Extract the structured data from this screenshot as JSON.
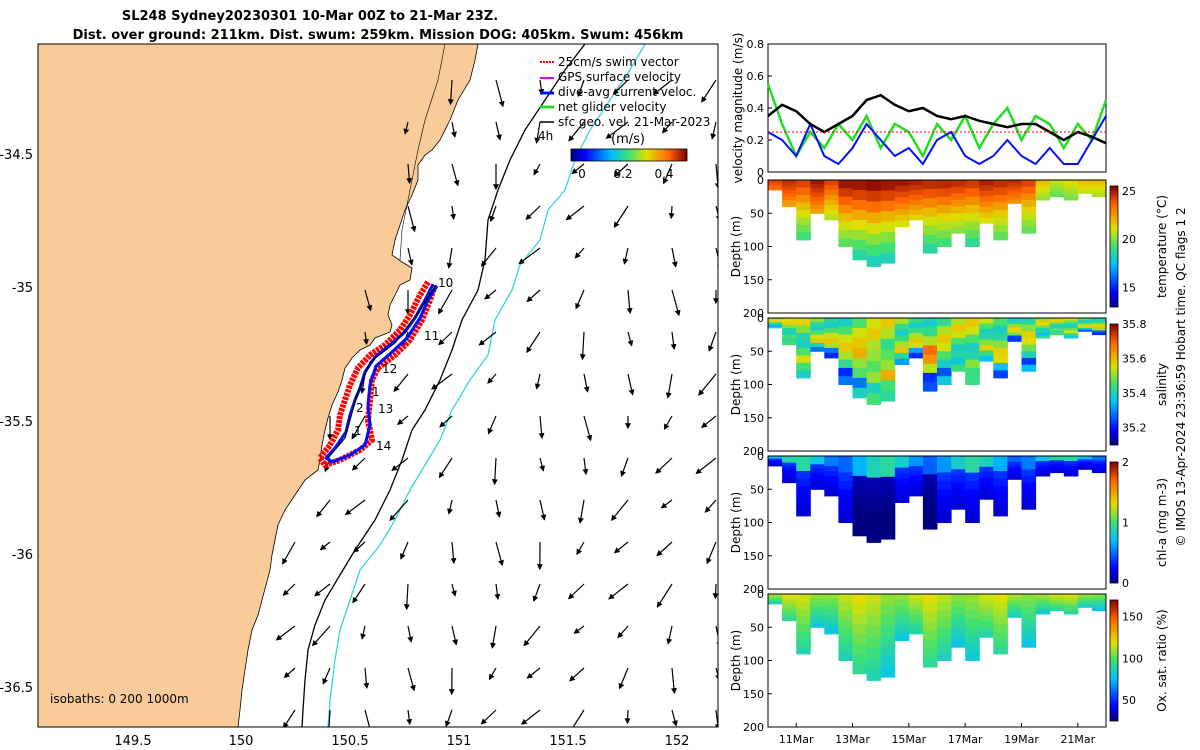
{
  "figure": {
    "title_line1": "SL248 Sydney20230301 10-Mar 00Z to 21-Mar 23Z.",
    "title_line2": "Dist. over ground: 211km. Dist. swum: 259km. Mission DOG: 405km. Swum: 456km",
    "credit": "© IMOS 13-Apr-2024 23:36:59 Hobart time. QC flags 1  2",
    "colors": {
      "land": "#f9cb98",
      "sea": "#ffffff",
      "isobath_deep": "#000000",
      "isobath_200": "#33d6e0",
      "track_red": "#ff0000",
      "track_blue": "#0010ff",
      "track_green": "#22dd22",
      "track_magenta": "#dd00dd"
    }
  },
  "map": {
    "x_ticks": [
      "149.5",
      "150",
      "150.5",
      "151",
      "151.5",
      "152"
    ],
    "y_ticks": [
      "-34.5",
      "-35",
      "-35.5",
      "-36",
      "-36.5"
    ],
    "legend": [
      "25cm/s swim vector",
      "GPS surface velocity",
      "dive-avg current veloc.",
      "net glider velocity",
      "sfc geo. vel. 21-Mar-2023"
    ],
    "colorbar_label": "(m/s)",
    "colorbar_ticks": [
      "0",
      "0.2",
      "0.4"
    ],
    "isobaths_note": "isobaths: 0   200  1000m",
    "time_marker": "4h",
    "day_labels": [
      "10",
      "11",
      "12",
      "1",
      "13",
      "2",
      "1",
      "14"
    ]
  },
  "chart_data": [
    {
      "type": "line",
      "title": "",
      "ylabel": "velocity magnitude (m/s)",
      "ylim": [
        0,
        0.8
      ],
      "y_ticks": [
        "0",
        "0.2",
        "0.4",
        "0.6",
        "0.8"
      ],
      "x": [
        10,
        10.5,
        11,
        11.5,
        12,
        12.5,
        13,
        13.5,
        14,
        14.5,
        15,
        15.5,
        16,
        16.5,
        17,
        17.5,
        18,
        18.5,
        19,
        19.5,
        20,
        20.5,
        21,
        21.5,
        22
      ],
      "series": [
        {
          "name": "net glider velocity",
          "values": [
            0.55,
            0.3,
            0.1,
            0.25,
            0.15,
            0.3,
            0.2,
            0.35,
            0.15,
            0.3,
            0.25,
            0.1,
            0.3,
            0.2,
            0.35,
            0.15,
            0.3,
            0.4,
            0.2,
            0.35,
            0.3,
            0.15,
            0.3,
            0.2,
            0.45
          ]
        },
        {
          "name": "dive-avg current veloc.",
          "values": [
            0.25,
            0.2,
            0.1,
            0.3,
            0.1,
            0.05,
            0.15,
            0.3,
            0.2,
            0.1,
            0.15,
            0.05,
            0.2,
            0.25,
            0.1,
            0.05,
            0.1,
            0.2,
            0.1,
            0.05,
            0.15,
            0.05,
            0.05,
            0.2,
            0.35
          ]
        },
        {
          "name": "sfc geo. vel.",
          "values": [
            0.35,
            0.42,
            0.38,
            0.3,
            0.25,
            0.3,
            0.35,
            0.45,
            0.48,
            0.42,
            0.38,
            0.4,
            0.35,
            0.33,
            0.35,
            0.32,
            0.3,
            0.28,
            0.3,
            0.3,
            0.25,
            0.2,
            0.25,
            0.22,
            0.18
          ]
        },
        {
          "name": "25cm/s swim vector",
          "values": [
            0.25,
            0.25,
            0.25,
            0.25,
            0.25,
            0.25,
            0.25,
            0.25,
            0.25,
            0.25,
            0.25,
            0.25,
            0.25,
            0.25,
            0.25,
            0.25,
            0.25,
            0.25,
            0.25,
            0.25,
            0.25,
            0.25,
            0.25,
            0.25,
            0.25
          ]
        }
      ]
    },
    {
      "type": "heatmap",
      "variable": "temperature",
      "colorbar_label": "temperature (°C)",
      "colorbar_ticks": [
        "15",
        "20",
        "25"
      ],
      "colorbar_range": [
        13,
        25.5
      ],
      "ylabel": "Depth (m)",
      "y_ticks": [
        "0",
        "50",
        "100",
        "150",
        "200"
      ],
      "ylim": [
        200,
        0
      ],
      "x": [
        10,
        10.5,
        11,
        11.5,
        12,
        12.5,
        13,
        13.5,
        14,
        14.5,
        15,
        15.5,
        16,
        16.5,
        17,
        17.5,
        18,
        18.5,
        19,
        19.5,
        20,
        20.5,
        21,
        21.5,
        22
      ],
      "max_depth": [
        15,
        40,
        90,
        50,
        60,
        100,
        120,
        130,
        125,
        70,
        60,
        110,
        100,
        80,
        100,
        65,
        90,
        35,
        80,
        30,
        25,
        30,
        20,
        25,
        20
      ],
      "surface_values": [
        24,
        24.5,
        24,
        25,
        24,
        25,
        25,
        25.2,
        25,
        25,
        24.8,
        24.5,
        24.6,
        24.5,
        24.2,
        24.8,
        24.5,
        24.5,
        24,
        22,
        21,
        21.5,
        22,
        22,
        22
      ]
    },
    {
      "type": "heatmap",
      "variable": "salinity",
      "colorbar_label": "salinity",
      "colorbar_ticks": [
        "35.2",
        "35.4",
        "35.6",
        "35.8"
      ],
      "colorbar_range": [
        35.1,
        35.8
      ],
      "ylabel": "Depth (m)",
      "y_ticks": [
        "0",
        "50",
        "100",
        "150",
        "200"
      ],
      "ylim": [
        200,
        0
      ],
      "x": [
        10,
        10.5,
        11,
        11.5,
        12,
        12.5,
        13,
        13.5,
        14,
        14.5,
        15,
        15.5,
        16,
        16.5,
        17,
        17.5,
        18,
        18.5,
        19,
        19.5,
        20,
        20.5,
        21,
        21.5,
        22
      ],
      "max_depth": [
        15,
        40,
        90,
        50,
        60,
        100,
        120,
        130,
        125,
        70,
        60,
        110,
        100,
        80,
        100,
        65,
        90,
        35,
        80,
        30,
        25,
        30,
        20,
        25,
        20
      ]
    },
    {
      "type": "heatmap",
      "variable": "chl-a",
      "colorbar_label": "chl-a (mg m-3)",
      "colorbar_ticks": [
        "0",
        "1",
        "2"
      ],
      "colorbar_range": [
        0,
        2
      ],
      "ylabel": "Depth (m)",
      "y_ticks": [
        "0",
        "50",
        "100",
        "150",
        "200"
      ],
      "ylim": [
        200,
        0
      ],
      "x": [
        10,
        10.5,
        11,
        11.5,
        12,
        12.5,
        13,
        13.5,
        14,
        14.5,
        15,
        15.5,
        16,
        16.5,
        17,
        17.5,
        18,
        18.5,
        19,
        19.5,
        20,
        20.5,
        21,
        21.5,
        22
      ],
      "max_depth": [
        15,
        40,
        90,
        50,
        60,
        100,
        120,
        130,
        125,
        70,
        60,
        110,
        100,
        80,
        100,
        65,
        90,
        35,
        80,
        30,
        25,
        30,
        20,
        25,
        20
      ]
    },
    {
      "type": "heatmap",
      "variable": "oxygen saturation",
      "colorbar_label": "Ox. sat. ratio (%)",
      "colorbar_ticks": [
        "50",
        "100",
        "150"
      ],
      "colorbar_range": [
        25,
        170
      ],
      "ylabel": "Depth (m)",
      "y_ticks": [
        "0",
        "50",
        "100",
        "150",
        "200"
      ],
      "ylim": [
        200,
        0
      ],
      "x_tick_labels": [
        "11Mar",
        "13Mar",
        "15Mar",
        "17Mar",
        "19Mar",
        "21Mar"
      ],
      "x": [
        10,
        10.5,
        11,
        11.5,
        12,
        12.5,
        13,
        13.5,
        14,
        14.5,
        15,
        15.5,
        16,
        16.5,
        17,
        17.5,
        18,
        18.5,
        19,
        19.5,
        20,
        20.5,
        21,
        21.5,
        22
      ],
      "max_depth": [
        15,
        40,
        90,
        50,
        60,
        100,
        120,
        130,
        125,
        70,
        60,
        110,
        100,
        80,
        100,
        65,
        90,
        35,
        80,
        30,
        25,
        30,
        20,
        25,
        20
      ]
    }
  ]
}
